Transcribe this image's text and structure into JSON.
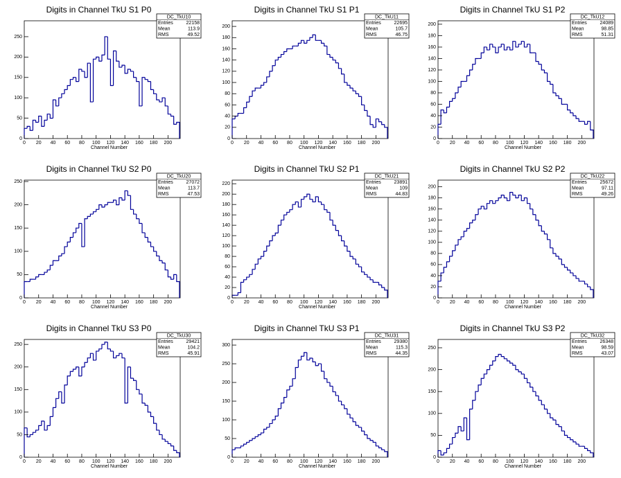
{
  "chart_data": [
    {
      "type": "histogram",
      "title": "Digits in Channel TkU S1 P0",
      "xlabel": "Channel Number",
      "color": "#000099",
      "bins": [
        0,
        4,
        8,
        12,
        16,
        20,
        24,
        28,
        32,
        36,
        40,
        44,
        48,
        52,
        56,
        60,
        64,
        68,
        72,
        76,
        80,
        84,
        88,
        92,
        96,
        100,
        104,
        108,
        112,
        116,
        120,
        124,
        128,
        132,
        136,
        140,
        144,
        148,
        152,
        156,
        160,
        164,
        168,
        172,
        176,
        180,
        184,
        188,
        192,
        196,
        200,
        204,
        208,
        212,
        216
      ],
      "values": [
        25,
        30,
        20,
        45,
        40,
        55,
        30,
        45,
        60,
        50,
        95,
        80,
        100,
        110,
        120,
        130,
        145,
        150,
        140,
        170,
        165,
        150,
        185,
        90,
        195,
        200,
        190,
        205,
        250,
        195,
        130,
        215,
        190,
        175,
        180,
        160,
        170,
        165,
        150,
        140,
        80,
        150,
        145,
        140,
        120,
        110,
        95,
        90,
        100,
        80,
        60,
        55,
        35,
        40
      ],
      "xlim": [
        0,
        217
      ],
      "xticks": [
        0,
        20,
        40,
        60,
        80,
        100,
        120,
        140,
        160,
        180,
        200
      ],
      "ylim": [
        0,
        289
      ],
      "yticks": [
        0,
        50,
        100,
        150,
        200,
        250
      ],
      "stats": {
        "title": "DC_TkU10",
        "labels": [
          "Entries",
          "Mean",
          "RMS"
        ],
        "values": [
          22158,
          113.9,
          49.52
        ]
      }
    },
    {
      "type": "histogram",
      "title": "Digits in Channel TkU S1 P1",
      "xlabel": "Channel Number",
      "color": "#000099",
      "bins": [
        0,
        4,
        8,
        12,
        16,
        20,
        24,
        28,
        32,
        36,
        40,
        44,
        48,
        52,
        56,
        60,
        64,
        68,
        72,
        76,
        80,
        84,
        88,
        92,
        96,
        100,
        104,
        108,
        112,
        116,
        120,
        124,
        128,
        132,
        136,
        140,
        144,
        148,
        152,
        156,
        160,
        164,
        168,
        172,
        176,
        180,
        184,
        188,
        192,
        196,
        200,
        204,
        208,
        212,
        216
      ],
      "values": [
        35,
        40,
        45,
        45,
        55,
        65,
        75,
        85,
        90,
        90,
        95,
        100,
        110,
        120,
        130,
        140,
        145,
        150,
        155,
        160,
        160,
        165,
        165,
        170,
        175,
        170,
        175,
        180,
        185,
        175,
        175,
        170,
        165,
        150,
        145,
        140,
        135,
        125,
        115,
        100,
        95,
        90,
        85,
        80,
        75,
        60,
        50,
        40,
        25,
        20,
        35,
        30,
        25,
        20
      ],
      "xlim": [
        0,
        217
      ],
      "xticks": [
        0,
        20,
        40,
        60,
        80,
        100,
        120,
        140,
        160,
        180,
        200
      ],
      "ylim": [
        0,
        210
      ],
      "yticks": [
        0,
        20,
        40,
        60,
        80,
        100,
        120,
        140,
        160,
        180,
        200
      ],
      "stats": {
        "title": "DC_TkU11",
        "labels": [
          "Entries",
          "Mean",
          "RMS"
        ],
        "values": [
          22695,
          105.7,
          46.75
        ]
      }
    },
    {
      "type": "histogram",
      "title": "Digits in Channel TkU S1 P2",
      "xlabel": "Channel Number",
      "color": "#000099",
      "bins": [
        0,
        4,
        8,
        12,
        16,
        20,
        24,
        28,
        32,
        36,
        40,
        44,
        48,
        52,
        56,
        60,
        64,
        68,
        72,
        76,
        80,
        84,
        88,
        92,
        96,
        100,
        104,
        108,
        112,
        116,
        120,
        124,
        128,
        132,
        136,
        140,
        144,
        148,
        152,
        156,
        160,
        164,
        168,
        172,
        176,
        180,
        184,
        188,
        192,
        196,
        200,
        204,
        208,
        212,
        216
      ],
      "values": [
        25,
        50,
        45,
        55,
        65,
        70,
        80,
        90,
        100,
        100,
        110,
        120,
        130,
        140,
        140,
        150,
        160,
        155,
        165,
        160,
        150,
        160,
        165,
        155,
        160,
        155,
        170,
        160,
        165,
        170,
        160,
        165,
        150,
        150,
        135,
        130,
        120,
        115,
        100,
        95,
        80,
        75,
        70,
        60,
        60,
        50,
        45,
        40,
        35,
        30,
        30,
        25,
        30,
        15
      ],
      "xlim": [
        0,
        217
      ],
      "xticks": [
        0,
        20,
        40,
        60,
        80,
        100,
        120,
        140,
        160,
        180,
        200
      ],
      "ylim": [
        0,
        206
      ],
      "yticks": [
        0,
        20,
        40,
        60,
        80,
        100,
        120,
        140,
        160,
        180,
        200
      ],
      "stats": {
        "title": "DC_TkU12",
        "labels": [
          "Entries",
          "Mean",
          "RMS"
        ],
        "values": [
          24089,
          98.85,
          51.31
        ]
      }
    },
    {
      "type": "histogram",
      "title": "Digits in Channel TkU S2 P0",
      "xlabel": "Channel Number",
      "color": "#000099",
      "bins": [
        0,
        4,
        8,
        12,
        16,
        20,
        24,
        28,
        32,
        36,
        40,
        44,
        48,
        52,
        56,
        60,
        64,
        68,
        72,
        76,
        80,
        84,
        88,
        92,
        96,
        100,
        104,
        108,
        112,
        116,
        120,
        124,
        128,
        132,
        136,
        140,
        144,
        148,
        152,
        156,
        160,
        164,
        168,
        172,
        176,
        180,
        184,
        188,
        192,
        196,
        200,
        204,
        208,
        212,
        216
      ],
      "values": [
        35,
        35,
        40,
        40,
        45,
        50,
        50,
        55,
        60,
        70,
        80,
        80,
        90,
        95,
        110,
        120,
        130,
        140,
        150,
        160,
        110,
        170,
        175,
        180,
        185,
        190,
        200,
        195,
        200,
        205,
        205,
        210,
        200,
        215,
        210,
        230,
        220,
        190,
        180,
        170,
        160,
        140,
        130,
        120,
        110,
        100,
        90,
        80,
        75,
        60,
        45,
        40,
        50,
        35
      ],
      "xlim": [
        0,
        217
      ],
      "xticks": [
        0,
        20,
        40,
        60,
        80,
        100,
        120,
        140,
        160,
        180,
        200
      ],
      "ylim": [
        0,
        253
      ],
      "yticks": [
        0,
        50,
        100,
        150,
        200,
        250
      ],
      "stats": {
        "title": "DC_TkU20",
        "labels": [
          "Entries",
          "Mean",
          "RMS"
        ],
        "values": [
          27072,
          113.7,
          47.53
        ]
      }
    },
    {
      "type": "histogram",
      "title": "Digits in Channel TkU S2 P1",
      "xlabel": "Channel Number",
      "color": "#000099",
      "bins": [
        0,
        4,
        8,
        12,
        16,
        20,
        24,
        28,
        32,
        36,
        40,
        44,
        48,
        52,
        56,
        60,
        64,
        68,
        72,
        76,
        80,
        84,
        88,
        92,
        96,
        100,
        104,
        108,
        112,
        116,
        120,
        124,
        128,
        132,
        136,
        140,
        144,
        148,
        152,
        156,
        160,
        164,
        168,
        172,
        176,
        180,
        184,
        188,
        192,
        196,
        200,
        204,
        208,
        212,
        216
      ],
      "values": [
        5,
        5,
        10,
        30,
        35,
        40,
        45,
        55,
        65,
        75,
        80,
        90,
        100,
        110,
        120,
        125,
        140,
        150,
        160,
        165,
        170,
        180,
        185,
        175,
        190,
        195,
        200,
        190,
        185,
        195,
        185,
        180,
        170,
        165,
        150,
        140,
        130,
        120,
        110,
        100,
        90,
        80,
        75,
        65,
        60,
        50,
        45,
        40,
        35,
        30,
        30,
        25,
        20,
        15
      ],
      "xlim": [
        0,
        217
      ],
      "xticks": [
        0,
        20,
        40,
        60,
        80,
        100,
        120,
        140,
        160,
        180,
        200
      ],
      "ylim": [
        0,
        227
      ],
      "yticks": [
        0,
        20,
        40,
        60,
        80,
        100,
        120,
        140,
        160,
        180,
        200,
        220
      ],
      "stats": {
        "title": "DC_TkU21",
        "labels": [
          "Entries",
          "Mean",
          "RMS"
        ],
        "values": [
          23891,
          109,
          44.83
        ]
      }
    },
    {
      "type": "histogram",
      "title": "Digits in Channel TkU S2 P2",
      "xlabel": "Channel Number",
      "color": "#000099",
      "bins": [
        0,
        4,
        8,
        12,
        16,
        20,
        24,
        28,
        32,
        36,
        40,
        44,
        48,
        52,
        56,
        60,
        64,
        68,
        72,
        76,
        80,
        84,
        88,
        92,
        96,
        100,
        104,
        108,
        112,
        116,
        120,
        124,
        128,
        132,
        136,
        140,
        144,
        148,
        152,
        156,
        160,
        164,
        168,
        172,
        176,
        180,
        184,
        188,
        192,
        196,
        200,
        204,
        208,
        212,
        216
      ],
      "values": [
        30,
        45,
        55,
        65,
        75,
        85,
        95,
        105,
        110,
        120,
        125,
        135,
        140,
        150,
        160,
        165,
        160,
        170,
        175,
        170,
        175,
        180,
        185,
        180,
        175,
        190,
        185,
        180,
        185,
        175,
        180,
        170,
        160,
        150,
        140,
        130,
        120,
        115,
        105,
        90,
        80,
        75,
        70,
        60,
        55,
        50,
        45,
        40,
        35,
        30,
        30,
        25,
        20,
        15
      ],
      "xlim": [
        0,
        217
      ],
      "xticks": [
        0,
        20,
        40,
        60,
        80,
        100,
        120,
        140,
        160,
        180,
        200
      ],
      "ylim": [
        0,
        212
      ],
      "yticks": [
        0,
        20,
        40,
        60,
        80,
        100,
        120,
        140,
        160,
        180,
        200
      ],
      "stats": {
        "title": "DC_TkU22",
        "labels": [
          "Entries",
          "Mean",
          "RMS"
        ],
        "values": [
          25672,
          97.11,
          49.26
        ]
      }
    },
    {
      "type": "histogram",
      "title": "Digits in Channel TkU S3 P0",
      "xlabel": "Channel Number",
      "color": "#000099",
      "bins": [
        0,
        4,
        8,
        12,
        16,
        20,
        24,
        28,
        32,
        36,
        40,
        44,
        48,
        52,
        56,
        60,
        64,
        68,
        72,
        76,
        80,
        84,
        88,
        92,
        96,
        100,
        104,
        108,
        112,
        116,
        120,
        124,
        128,
        132,
        136,
        140,
        144,
        148,
        152,
        156,
        160,
        164,
        168,
        172,
        176,
        180,
        184,
        188,
        192,
        196,
        200,
        204,
        208,
        212,
        216
      ],
      "values": [
        65,
        45,
        50,
        55,
        60,
        70,
        80,
        60,
        70,
        90,
        110,
        130,
        145,
        120,
        160,
        180,
        190,
        195,
        200,
        180,
        200,
        210,
        220,
        230,
        215,
        235,
        240,
        250,
        255,
        240,
        235,
        220,
        225,
        230,
        220,
        120,
        200,
        175,
        170,
        150,
        140,
        120,
        115,
        100,
        90,
        75,
        60,
        50,
        40,
        35,
        30,
        25,
        15,
        10
      ],
      "xlim": [
        0,
        217
      ],
      "xticks": [
        0,
        20,
        40,
        60,
        80,
        100,
        120,
        140,
        160,
        180,
        200
      ],
      "ylim": [
        0,
        261
      ],
      "yticks": [
        0,
        50,
        100,
        150,
        200,
        250
      ],
      "stats": {
        "title": "DC_TkU30",
        "labels": [
          "Entries",
          "Mean",
          "RMS"
        ],
        "values": [
          29421,
          104.2,
          45.91
        ]
      }
    },
    {
      "type": "histogram",
      "title": "Digits in Channel TkU S3 P1",
      "xlabel": "Channel Number",
      "color": "#000099",
      "bins": [
        0,
        4,
        8,
        12,
        16,
        20,
        24,
        28,
        32,
        36,
        40,
        44,
        48,
        52,
        56,
        60,
        64,
        68,
        72,
        76,
        80,
        84,
        88,
        92,
        96,
        100,
        104,
        108,
        112,
        116,
        120,
        124,
        128,
        132,
        136,
        140,
        144,
        148,
        152,
        156,
        160,
        164,
        168,
        172,
        176,
        180,
        184,
        188,
        192,
        196,
        200,
        204,
        208,
        212,
        216
      ],
      "values": [
        20,
        25,
        25,
        30,
        35,
        40,
        45,
        50,
        55,
        60,
        65,
        75,
        80,
        90,
        100,
        110,
        130,
        145,
        160,
        180,
        190,
        210,
        240,
        260,
        270,
        280,
        260,
        265,
        255,
        245,
        250,
        230,
        210,
        200,
        190,
        175,
        165,
        150,
        140,
        130,
        115,
        105,
        95,
        85,
        80,
        70,
        60,
        50,
        45,
        40,
        30,
        25,
        20,
        15
      ],
      "xlim": [
        0,
        217
      ],
      "xticks": [
        0,
        20,
        40,
        60,
        80,
        100,
        120,
        140,
        160,
        180,
        200
      ],
      "ylim": [
        0,
        315
      ],
      "yticks": [
        0,
        50,
        100,
        150,
        200,
        250,
        300
      ],
      "stats": {
        "title": "DC_TkU31",
        "labels": [
          "Entries",
          "Mean",
          "RMS"
        ],
        "values": [
          29380,
          115.3,
          44.35
        ]
      }
    },
    {
      "type": "histogram",
      "title": "Digits in Channel TkU S3 P2",
      "xlabel": "Channel Number",
      "color": "#000099",
      "bins": [
        0,
        4,
        8,
        12,
        16,
        20,
        24,
        28,
        32,
        36,
        40,
        44,
        48,
        52,
        56,
        60,
        64,
        68,
        72,
        76,
        80,
        84,
        88,
        92,
        96,
        100,
        104,
        108,
        112,
        116,
        120,
        124,
        128,
        132,
        136,
        140,
        144,
        148,
        152,
        156,
        160,
        164,
        168,
        172,
        176,
        180,
        184,
        188,
        192,
        196,
        200,
        204,
        208,
        212,
        216
      ],
      "values": [
        15,
        5,
        10,
        20,
        30,
        45,
        55,
        70,
        60,
        90,
        40,
        110,
        130,
        150,
        165,
        180,
        190,
        200,
        210,
        220,
        230,
        235,
        230,
        225,
        220,
        215,
        210,
        200,
        195,
        190,
        180,
        170,
        160,
        150,
        140,
        130,
        120,
        110,
        100,
        90,
        85,
        75,
        70,
        60,
        50,
        45,
        40,
        35,
        30,
        25,
        25,
        20,
        15,
        10
      ],
      "xlim": [
        0,
        217
      ],
      "xticks": [
        0,
        20,
        40,
        60,
        80,
        100,
        120,
        140,
        160,
        180,
        200
      ],
      "ylim": [
        0,
        269
      ],
      "yticks": [
        0,
        50,
        100,
        150,
        200,
        250
      ],
      "stats": {
        "title": "DC_TkU32",
        "labels": [
          "Entries",
          "Mean",
          "RMS"
        ],
        "values": [
          26348,
          98.59,
          43.07
        ]
      }
    }
  ]
}
